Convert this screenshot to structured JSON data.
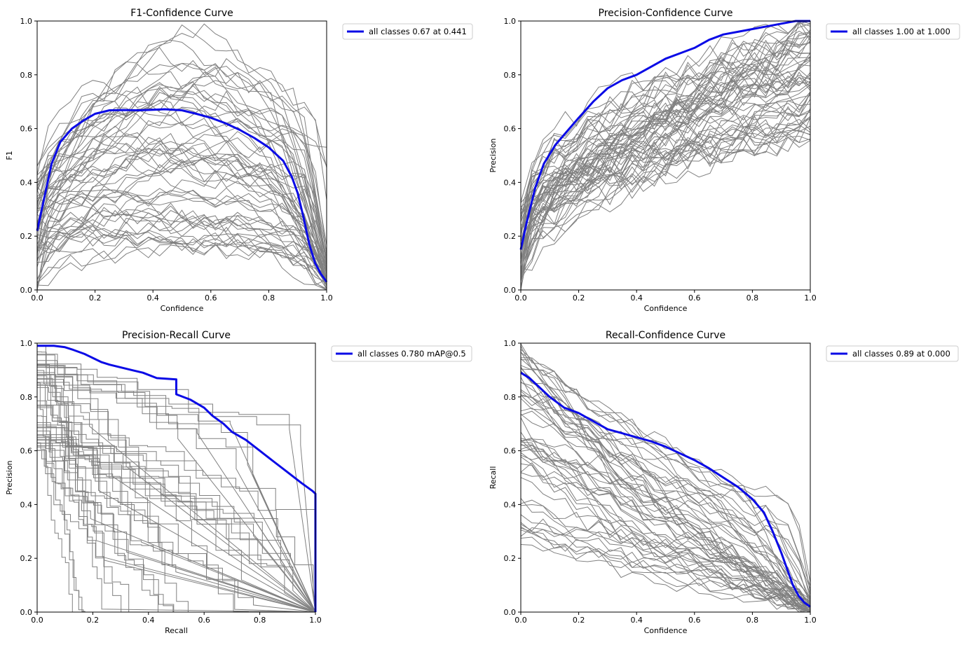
{
  "colors": {
    "highlight": "#0a0ae6",
    "class_lines": "#808080",
    "axes": "#000000",
    "background": "#ffffff"
  },
  "chart_data": [
    {
      "id": "f1",
      "type": "line",
      "title": "F1-Confidence Curve",
      "xlabel": "Confidence",
      "ylabel": "F1",
      "xlim": [
        0.0,
        1.0
      ],
      "ylim": [
        0.0,
        1.0
      ],
      "xticks": [
        "0.0",
        "0.2",
        "0.4",
        "0.6",
        "0.8",
        "1.0"
      ],
      "yticks": [
        "0.0",
        "0.2",
        "0.4",
        "0.6",
        "0.8",
        "1.0"
      ],
      "legend": "all classes 0.67 at 0.441",
      "legend_position": "outside-top-right",
      "series": [
        {
          "name": "all classes",
          "x": [
            0.0,
            0.02,
            0.05,
            0.08,
            0.12,
            0.16,
            0.2,
            0.25,
            0.3,
            0.35,
            0.4,
            0.441,
            0.5,
            0.55,
            0.6,
            0.65,
            0.7,
            0.75,
            0.8,
            0.85,
            0.88,
            0.9,
            0.92,
            0.94,
            0.96,
            0.98,
            1.0
          ],
          "y": [
            0.22,
            0.32,
            0.47,
            0.55,
            0.6,
            0.63,
            0.655,
            0.668,
            0.669,
            0.668,
            0.67,
            0.672,
            0.668,
            0.655,
            0.64,
            0.62,
            0.595,
            0.565,
            0.53,
            0.48,
            0.42,
            0.36,
            0.27,
            0.17,
            0.1,
            0.06,
            0.03
          ]
        }
      ],
      "class_curves_count": 60
    },
    {
      "id": "precision",
      "type": "line",
      "title": "Precision-Confidence Curve",
      "xlabel": "Confidence",
      "ylabel": "Precision",
      "xlim": [
        0.0,
        1.0
      ],
      "ylim": [
        0.0,
        1.0
      ],
      "xticks": [
        "0.0",
        "0.2",
        "0.4",
        "0.6",
        "0.8",
        "1.0"
      ],
      "yticks": [
        "0.0",
        "0.2",
        "0.4",
        "0.6",
        "0.8",
        "1.0"
      ],
      "legend": "all classes 1.00 at 1.000",
      "legend_position": "outside-top-right",
      "series": [
        {
          "name": "all classes",
          "x": [
            0.0,
            0.02,
            0.05,
            0.08,
            0.12,
            0.16,
            0.2,
            0.25,
            0.3,
            0.35,
            0.4,
            0.45,
            0.5,
            0.55,
            0.6,
            0.65,
            0.7,
            0.75,
            0.8,
            0.85,
            0.9,
            0.95,
            1.0
          ],
          "y": [
            0.15,
            0.25,
            0.38,
            0.47,
            0.54,
            0.59,
            0.64,
            0.7,
            0.75,
            0.78,
            0.8,
            0.83,
            0.86,
            0.88,
            0.9,
            0.93,
            0.95,
            0.96,
            0.97,
            0.98,
            0.99,
            1.0,
            1.0
          ]
        }
      ],
      "class_curves_count": 60
    },
    {
      "id": "pr",
      "type": "line",
      "title": "Precision-Recall Curve",
      "xlabel": "Recall",
      "ylabel": "Precision",
      "xlim": [
        0.0,
        1.0
      ],
      "ylim": [
        0.0,
        1.0
      ],
      "xticks": [
        "0.0",
        "0.2",
        "0.4",
        "0.6",
        "0.8",
        "1.0"
      ],
      "yticks": [
        "0.0",
        "0.2",
        "0.4",
        "0.6",
        "0.8",
        "1.0"
      ],
      "legend": "all classes 0.780 mAP@0.5",
      "legend_position": "outside-top-right",
      "series": [
        {
          "name": "all classes",
          "x": [
            0.0,
            0.06,
            0.1,
            0.13,
            0.17,
            0.2,
            0.23,
            0.26,
            0.3,
            0.34,
            0.38,
            0.43,
            0.5,
            0.5,
            0.55,
            0.6,
            0.63,
            0.67,
            0.7,
            0.75,
            0.8,
            0.85,
            0.9,
            0.95,
            0.99,
            1.0,
            1.0
          ],
          "y": [
            0.99,
            0.99,
            0.985,
            0.975,
            0.96,
            0.945,
            0.93,
            0.92,
            0.91,
            0.9,
            0.89,
            0.87,
            0.865,
            0.81,
            0.79,
            0.76,
            0.73,
            0.7,
            0.67,
            0.64,
            0.6,
            0.56,
            0.52,
            0.48,
            0.45,
            0.44,
            0.0
          ]
        }
      ],
      "class_curves_count": 45
    },
    {
      "id": "recall",
      "type": "line",
      "title": "Recall-Confidence Curve",
      "xlabel": "Confidence",
      "ylabel": "Recall",
      "xlim": [
        0.0,
        1.0
      ],
      "ylim": [
        0.0,
        1.0
      ],
      "xticks": [
        "0.0",
        "0.2",
        "0.4",
        "0.6",
        "0.8",
        "1.0"
      ],
      "yticks": [
        "0.0",
        "0.2",
        "0.4",
        "0.6",
        "0.8",
        "1.0"
      ],
      "legend": "all classes 0.89 at 0.000",
      "legend_position": "outside-top-right",
      "series": [
        {
          "name": "all classes",
          "x": [
            0.0,
            0.03,
            0.06,
            0.1,
            0.15,
            0.2,
            0.25,
            0.3,
            0.35,
            0.4,
            0.45,
            0.5,
            0.55,
            0.6,
            0.65,
            0.7,
            0.75,
            0.8,
            0.84,
            0.87,
            0.9,
            0.92,
            0.94,
            0.96,
            0.98,
            1.0
          ],
          "y": [
            0.89,
            0.87,
            0.84,
            0.8,
            0.76,
            0.74,
            0.71,
            0.68,
            0.665,
            0.65,
            0.635,
            0.615,
            0.59,
            0.565,
            0.535,
            0.5,
            0.465,
            0.42,
            0.37,
            0.3,
            0.22,
            0.16,
            0.1,
            0.06,
            0.035,
            0.02
          ]
        }
      ],
      "class_curves_count": 55
    }
  ]
}
